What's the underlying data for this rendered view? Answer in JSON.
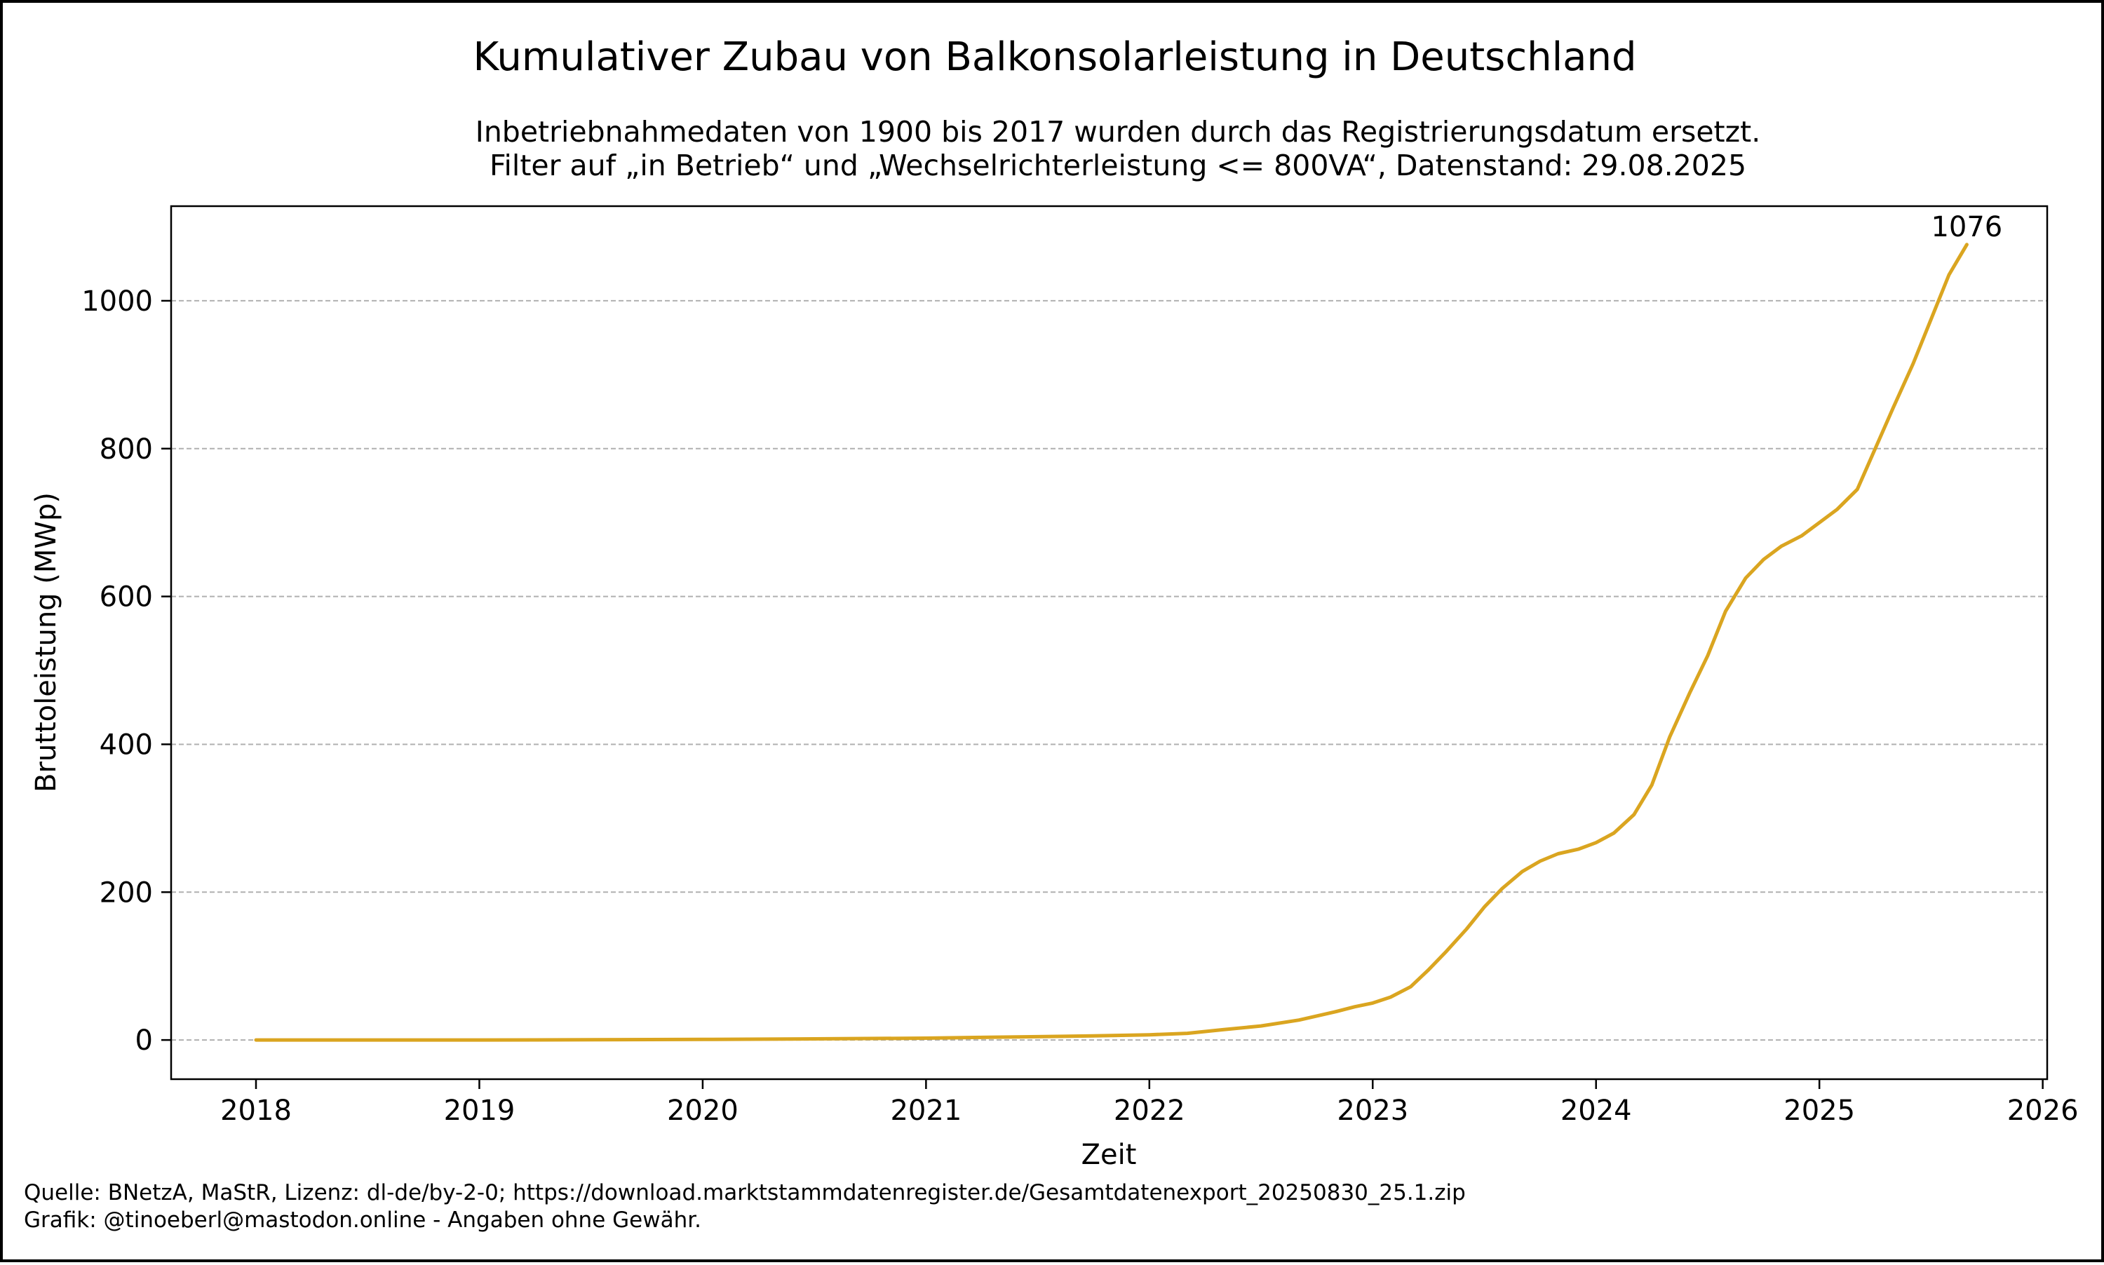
{
  "chart_data": {
    "type": "line",
    "title": "Kumulativer Zubau von Balkonsolarleistung in Deutschland",
    "subtitle_lines": [
      "Inbetriebnahmedaten von 1900 bis 2017 wurden durch das Registrierungsdatum ersetzt.",
      "Filter auf „in Betrieb“ und „Wechselrichterleistung <= 800VA“, Datenstand: 29.08.2025"
    ],
    "xlabel": "Zeit",
    "ylabel": "Bruttoleistung (MWp)",
    "xlim": [
      2017.62,
      2026.02
    ],
    "ylim": [
      -53,
      1128
    ],
    "x_ticks": [
      "2018",
      "2019",
      "2020",
      "2021",
      "2022",
      "2023",
      "2024",
      "2025",
      "2026"
    ],
    "y_ticks": [
      "0",
      "200",
      "400",
      "600",
      "800",
      "1000"
    ],
    "grid": "horizontal dashed",
    "line_color": "#DAA520",
    "annotation": "1076",
    "series": [
      {
        "x": [
          2018.0,
          2018.5,
          2019.0,
          2019.5,
          2020.0,
          2020.5,
          2021.0,
          2021.25,
          2021.5,
          2021.75,
          2022.0,
          2022.17,
          2022.33,
          2022.5,
          2022.67,
          2022.83,
          2022.92,
          2023.0,
          2023.08,
          2023.17,
          2023.25,
          2023.33,
          2023.42,
          2023.5,
          2023.58,
          2023.67,
          2023.75,
          2023.83,
          2023.92,
          2024.0,
          2024.08,
          2024.17,
          2024.25,
          2024.33,
          2024.42,
          2024.5,
          2024.58,
          2024.67,
          2024.75,
          2024.83,
          2024.92,
          2025.0,
          2025.08,
          2025.17,
          2025.25,
          2025.33,
          2025.42,
          2025.5,
          2025.58,
          2025.66
        ],
        "y": [
          0,
          0,
          0,
          0.3,
          0.8,
          1.5,
          2.5,
          3.5,
          4.5,
          5.5,
          7,
          9,
          14,
          19,
          27,
          38,
          45,
          50,
          58,
          72,
          95,
          120,
          150,
          180,
          205,
          228,
          242,
          252,
          258,
          267,
          280,
          305,
          345,
          410,
          470,
          520,
          580,
          625,
          650,
          668,
          682,
          700,
          718,
          745,
          800,
          855,
          915,
          975,
          1035,
          1076
        ]
      }
    ]
  },
  "footer": {
    "source": "Quelle: BNetzA, MaStR, Lizenz: dl-de/by-2-0; https://download.marktstammdatenregister.de/Gesamtdatenexport_20250830_25.1.zip",
    "credit": "Grafik: @tinoeberl@mastodon.online - Angaben ohne Gewähr."
  }
}
